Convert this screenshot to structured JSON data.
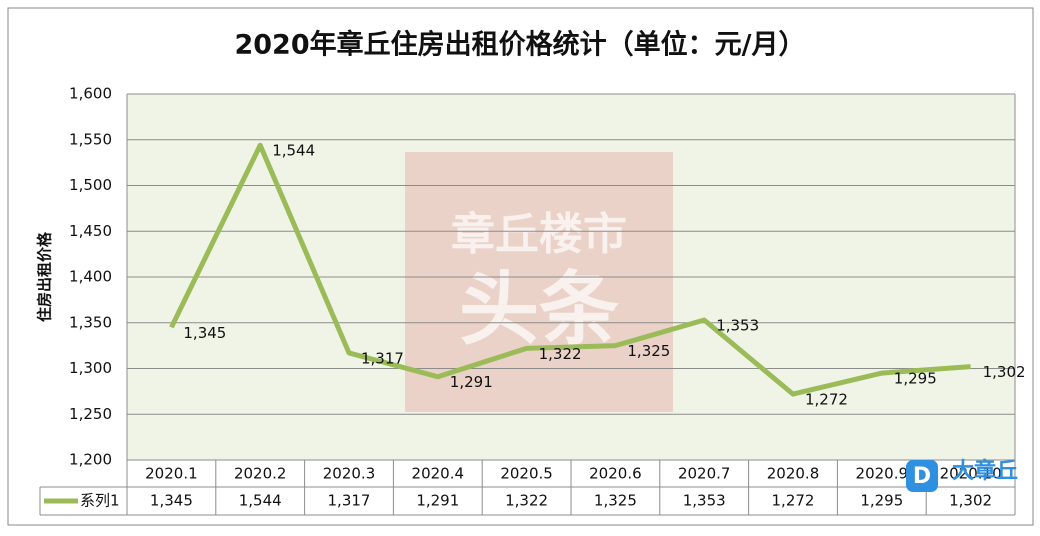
{
  "chart_data": {
    "type": "line",
    "title": "2020年章丘住房出租价格统计（单位：元/月）",
    "y_label": "住房出租价格",
    "categories": [
      "2020.1",
      "2020.2",
      "2020.3",
      "2020.4",
      "2020.5",
      "2020.6",
      "2020.7",
      "2020.8",
      "2020.9",
      "2020.10"
    ],
    "series": [
      {
        "name": "系列1",
        "color": "#9bbb59",
        "values": [
          1345,
          1544,
          1317,
          1291,
          1322,
          1325,
          1353,
          1272,
          1295,
          1302
        ],
        "value_labels": [
          "1,345",
          "1,544",
          "1,317",
          "1,291",
          "1,322",
          "1,325",
          "1,353",
          "1,272",
          "1,295",
          "1,302"
        ]
      }
    ],
    "ylim": [
      1200,
      1600
    ],
    "yticks": [
      {
        "value": 1200,
        "label": "1,200"
      },
      {
        "value": 1250,
        "label": "1,250"
      },
      {
        "value": 1300,
        "label": "1,300"
      },
      {
        "value": 1350,
        "label": "1,350"
      },
      {
        "value": 1400,
        "label": "1,400"
      },
      {
        "value": 1450,
        "label": "1,450"
      },
      {
        "value": 1500,
        "label": "1,500"
      },
      {
        "value": 1550,
        "label": "1,550"
      },
      {
        "value": 1600,
        "label": "1,600"
      }
    ],
    "grid": true,
    "data_table": true,
    "watermark": [
      "章丘楼市",
      "头条"
    ],
    "logo": "大章丘"
  }
}
